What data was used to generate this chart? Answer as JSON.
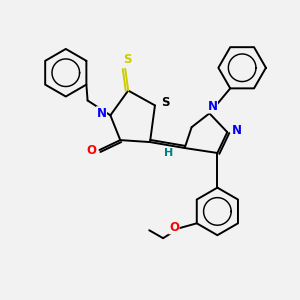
{
  "background_color": "#f2f2f2",
  "bond_color": "#000000",
  "atom_colors": {
    "N": "#0000ff",
    "O": "#ff0000",
    "S_yellow": "#cccc00",
    "S_black": "#000000",
    "H": "#008080",
    "C": "#000000"
  },
  "figsize": [
    3.0,
    3.0
  ],
  "dpi": 100,
  "lw": 1.4
}
